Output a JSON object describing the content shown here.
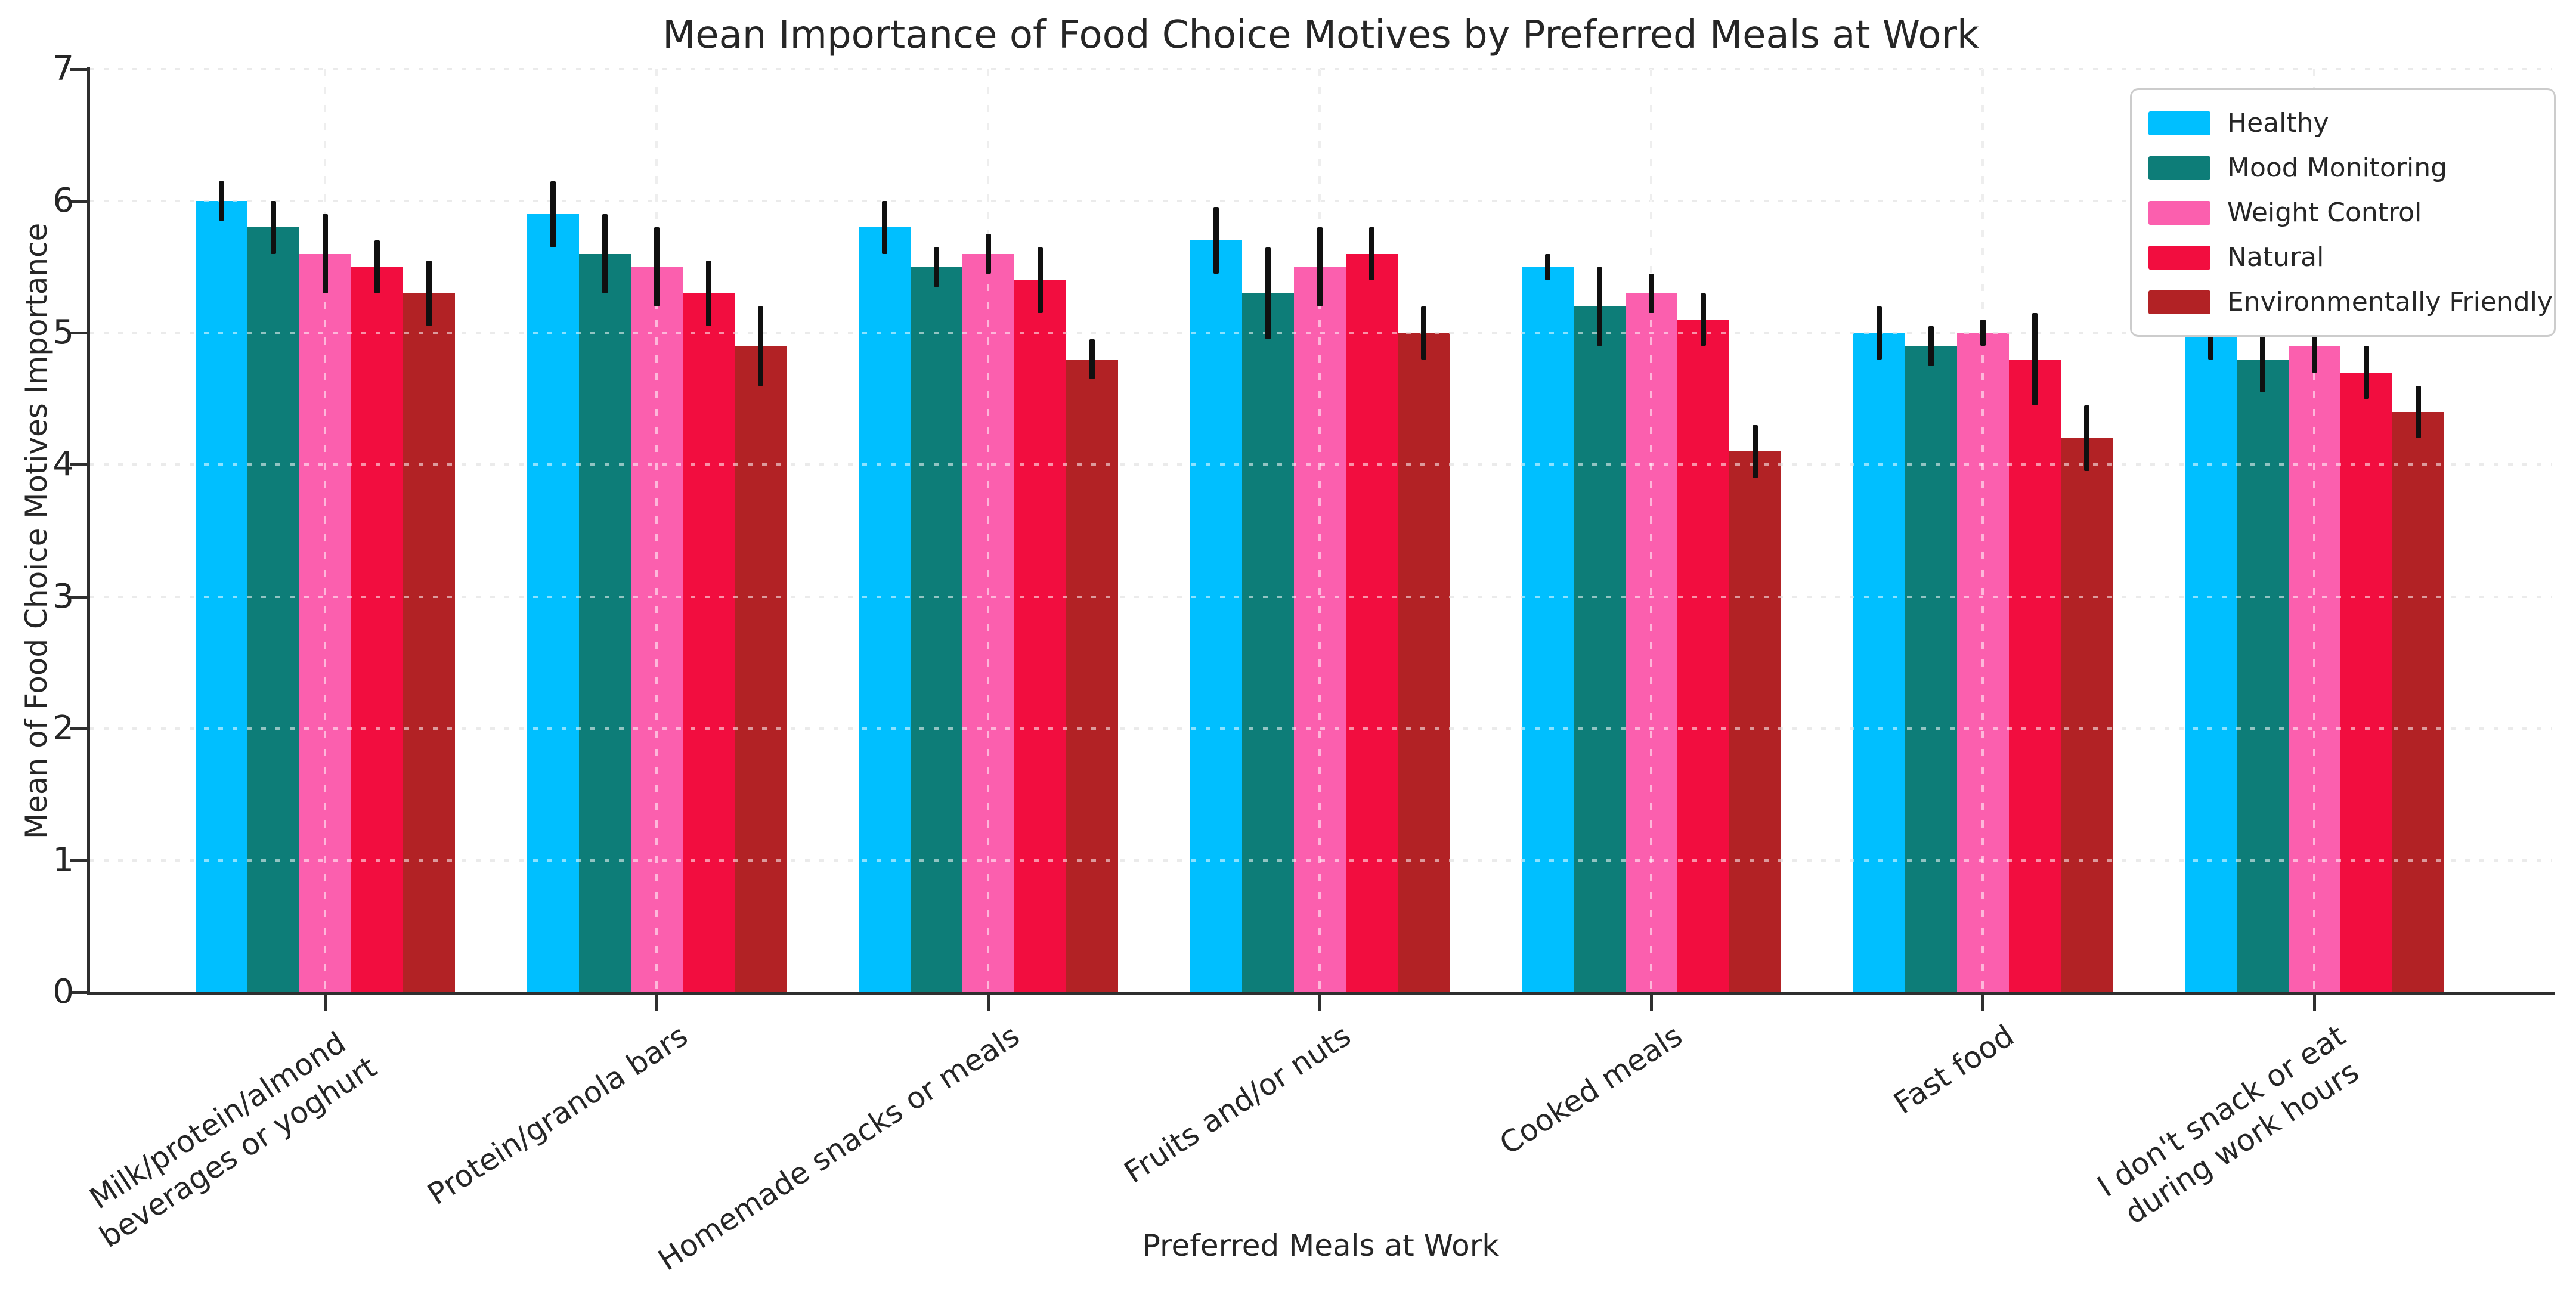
{
  "chart_data": {
    "type": "bar",
    "title": "Mean Importance of Food Choice Motives by Preferred Meals at Work",
    "xlabel": "Preferred Meals at Work",
    "ylabel": "Mean of Food Choice Motives Importance",
    "ylim": [
      0,
      7
    ],
    "yticks": [
      0,
      1,
      2,
      3,
      4,
      5,
      6,
      7
    ],
    "grid": "dotted horizontal and vertical gridlines",
    "legend_position": "upper right",
    "error_bars": true,
    "categories": [
      "Milk/protein/almond\nbeverages or yoghurt",
      "Protein/granola bars",
      "Homemade snacks or meals",
      "Fruits and/or nuts",
      "Cooked meals",
      "Fast food",
      "I don't snack or eat\nduring work hours"
    ],
    "series": [
      {
        "name": "Healthy",
        "color": "#00BFFF",
        "values": [
          6.0,
          5.9,
          5.8,
          5.7,
          5.5,
          5.0,
          5.0
        ],
        "errors": [
          0.15,
          0.25,
          0.2,
          0.25,
          0.1,
          0.2,
          0.2
        ]
      },
      {
        "name": "Mood Monitoring",
        "color": "#0D7D78",
        "values": [
          5.8,
          5.6,
          5.5,
          5.3,
          5.2,
          4.9,
          4.8
        ],
        "errors": [
          0.2,
          0.3,
          0.15,
          0.35,
          0.3,
          0.15,
          0.25
        ]
      },
      {
        "name": "Weight Control",
        "color": "#FB5FAE",
        "values": [
          5.6,
          5.5,
          5.6,
          5.5,
          5.3,
          5.0,
          4.9
        ],
        "errors": [
          0.3,
          0.3,
          0.15,
          0.3,
          0.15,
          0.1,
          0.2
        ]
      },
      {
        "name": "Natural",
        "color": "#F20D3F",
        "values": [
          5.5,
          5.3,
          5.4,
          5.6,
          5.1,
          4.8,
          4.7
        ],
        "errors": [
          0.2,
          0.25,
          0.25,
          0.2,
          0.2,
          0.35,
          0.2
        ]
      },
      {
        "name": "Environmentally Friendly",
        "color": "#B22225",
        "values": [
          5.3,
          4.9,
          4.8,
          5.0,
          4.1,
          4.2,
          4.4
        ],
        "errors": [
          0.25,
          0.3,
          0.15,
          0.2,
          0.2,
          0.25,
          0.2
        ]
      }
    ]
  }
}
